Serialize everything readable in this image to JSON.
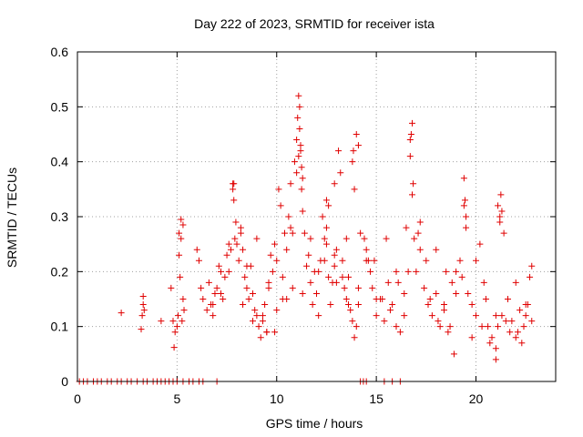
{
  "chart_data": {
    "type": "scatter",
    "title": "Day 222 of 2023, SRMTID for receiver ista",
    "xlabel": "GPS time / hours",
    "ylabel": "SRMTID / TECUs",
    "xlim": [
      0,
      24
    ],
    "ylim": [
      0,
      0.6
    ],
    "xticks": [
      0,
      5,
      10,
      15,
      20
    ],
    "xtick_labels": [
      "0",
      "5",
      "10",
      "15",
      "20"
    ],
    "yticks": [
      0,
      0.1,
      0.2,
      0.3,
      0.4,
      0.5,
      0.6
    ],
    "ytick_labels": [
      "0",
      "0.1",
      "0.2",
      "0.3",
      "0.4",
      "0.5",
      "0.6"
    ],
    "grid": true,
    "marker": "+",
    "series": [
      {
        "name": "SRMTID",
        "color": "#e00000",
        "x": [
          0.1,
          0.3,
          0.5,
          0.8,
          1.0,
          1.2,
          1.5,
          1.7,
          2.0,
          2.2,
          2.5,
          2.7,
          3.0,
          3.3,
          3.5,
          3.8,
          4.0,
          4.2,
          4.4,
          4.6,
          4.8,
          5.0,
          5.3,
          5.6,
          5.8,
          6.1,
          6.3,
          7.0,
          14.2,
          14.35,
          14.5,
          15.4,
          15.8,
          16.2,
          2.2,
          3.2,
          3.25,
          3.3,
          3.3,
          3.35,
          4.2,
          4.7,
          4.8,
          4.85,
          4.9,
          5.0,
          5.05,
          5.1,
          5.1,
          5.15,
          5.2,
          5.2,
          5.25,
          5.3,
          5.3,
          5.35,
          6.0,
          6.1,
          6.2,
          6.3,
          6.5,
          6.6,
          6.7,
          6.8,
          6.9,
          7.0,
          7.1,
          7.2,
          7.3,
          7.4,
          7.5,
          7.6,
          7.7,
          7.8,
          7.85,
          7.9,
          7.95,
          8.0,
          8.1,
          8.2,
          8.3,
          8.4,
          8.5,
          8.6,
          8.7,
          8.8,
          8.9,
          9.0,
          9.1,
          9.2,
          9.3,
          9.4,
          9.5,
          9.6,
          9.7,
          9.8,
          9.9,
          10.0,
          10.1,
          10.2,
          10.3,
          10.4,
          10.5,
          10.6,
          10.7,
          10.8,
          10.9,
          11.0,
          11.05,
          11.1,
          11.15,
          11.2,
          11.25,
          11.3,
          11.4,
          11.5,
          11.6,
          11.7,
          11.8,
          11.9,
          12.0,
          12.1,
          12.2,
          12.3,
          12.4,
          12.5,
          12.6,
          12.7,
          12.8,
          12.9,
          13.0,
          13.1,
          13.2,
          13.3,
          13.4,
          13.5,
          13.6,
          13.7,
          13.8,
          13.9,
          14.0,
          14.1,
          14.2,
          14.4,
          14.5,
          14.6,
          14.7,
          14.8,
          15.0,
          15.2,
          15.4,
          15.6,
          15.8,
          16.0,
          16.2,
          16.4,
          16.6,
          16.7,
          16.75,
          16.8,
          16.85,
          16.9,
          17.0,
          17.2,
          17.4,
          17.6,
          17.8,
          18.0,
          18.2,
          18.4,
          18.6,
          18.8,
          19.0,
          19.2,
          19.4,
          19.45,
          19.5,
          19.6,
          19.8,
          20.0,
          20.2,
          20.4,
          20.6,
          20.8,
          21.0,
          21.1,
          21.2,
          21.25,
          21.3,
          21.4,
          21.6,
          21.8,
          22.0,
          22.2,
          22.4,
          22.6,
          22.7,
          22.8,
          7.8,
          7.85,
          8.2,
          8.5,
          9.0,
          9.5,
          10.0,
          10.5,
          10.8,
          11.0,
          11.1,
          11.15,
          11.2,
          11.25,
          11.3,
          12.4,
          12.5,
          12.6,
          12.9,
          13.0,
          13.5,
          13.8,
          13.85,
          13.9,
          14.0,
          14.1,
          14.5,
          15.0,
          15.5,
          16.0,
          16.5,
          16.7,
          16.8,
          17.2,
          17.5,
          18.0,
          18.5,
          19.0,
          19.4,
          19.5,
          20.0,
          20.5,
          21.0,
          21.1,
          21.2,
          21.5,
          22.0,
          22.5,
          6.8,
          7.2,
          7.6,
          8.3,
          8.8,
          9.3,
          9.6,
          9.9,
          10.3,
          10.7,
          11.3,
          11.7,
          12.1,
          12.5,
          12.9,
          13.3,
          13.6,
          14.1,
          14.9,
          15.3,
          15.7,
          16.1,
          16.4,
          17.1,
          17.7,
          18.1,
          18.4,
          18.7,
          18.9,
          19.3,
          19.8,
          20.3,
          20.7,
          21.0,
          21.3,
          21.7,
          22.1,
          22.3,
          22.5,
          22.8
        ],
        "y": [
          0,
          0,
          0,
          0,
          0,
          0,
          0,
          0,
          0,
          0,
          0,
          0,
          0,
          0,
          0,
          0,
          0,
          0,
          0,
          0,
          0,
          0,
          0,
          0,
          0,
          0,
          0,
          0,
          0,
          0,
          0,
          0,
          0,
          0,
          0.125,
          0.095,
          0.12,
          0.14,
          0.155,
          0.13,
          0.11,
          0.17,
          0.11,
          0.062,
          0.09,
          0.1,
          0.12,
          0.23,
          0.27,
          0.19,
          0.26,
          0.295,
          0.11,
          0.15,
          0.285,
          0.13,
          0.24,
          0.22,
          0.17,
          0.15,
          0.13,
          0.18,
          0.14,
          0.12,
          0.16,
          0.17,
          0.21,
          0.16,
          0.15,
          0.19,
          0.23,
          0.2,
          0.24,
          0.36,
          0.33,
          0.26,
          0.29,
          0.25,
          0.22,
          0.27,
          0.24,
          0.19,
          0.17,
          0.15,
          0.21,
          0.16,
          0.13,
          0.12,
          0.1,
          0.08,
          0.11,
          0.14,
          0.09,
          0.17,
          0.23,
          0.2,
          0.25,
          0.22,
          0.35,
          0.32,
          0.19,
          0.27,
          0.24,
          0.3,
          0.36,
          0.27,
          0.4,
          0.44,
          0.48,
          0.52,
          0.5,
          0.42,
          0.35,
          0.31,
          0.27,
          0.21,
          0.23,
          0.18,
          0.14,
          0.2,
          0.16,
          0.12,
          0.22,
          0.3,
          0.26,
          0.33,
          0.19,
          0.14,
          0.18,
          0.21,
          0.24,
          0.42,
          0.38,
          0.22,
          0.17,
          0.15,
          0.19,
          0.13,
          0.11,
          0.08,
          0.1,
          0.14,
          0.27,
          0.26,
          0.24,
          0.22,
          0.2,
          0.17,
          0.12,
          0.15,
          0.11,
          0.18,
          0.14,
          0.1,
          0.09,
          0.16,
          0.2,
          0.41,
          0.45,
          0.47,
          0.36,
          0.26,
          0.2,
          0.24,
          0.17,
          0.14,
          0.12,
          0.16,
          0.1,
          0.13,
          0.09,
          0.18,
          0.2,
          0.22,
          0.37,
          0.33,
          0.3,
          0.16,
          0.14,
          0.12,
          0.25,
          0.18,
          0.1,
          0.08,
          0.06,
          0.1,
          0.3,
          0.34,
          0.31,
          0.27,
          0.15,
          0.11,
          0.08,
          0.13,
          0.1,
          0.14,
          0.19,
          0.21,
          0.35,
          0.36,
          0.28,
          0.21,
          0.26,
          0.09,
          0.13,
          0.15,
          0.17,
          0.38,
          0.41,
          0.46,
          0.43,
          0.39,
          0.37,
          0.22,
          0.28,
          0.32,
          0.36,
          0.18,
          0.26,
          0.4,
          0.42,
          0.35,
          0.45,
          0.43,
          0.22,
          0.15,
          0.26,
          0.2,
          0.28,
          0.44,
          0.34,
          0.29,
          0.22,
          0.24,
          0.2,
          0.16,
          0.32,
          0.28,
          0.22,
          0.15,
          0.12,
          0.32,
          0.29,
          0.11,
          0.18,
          0.14,
          0.14,
          0.2,
          0.25,
          0.14,
          0.11,
          0.12,
          0.18,
          0.09,
          0.15,
          0.28,
          0.16,
          0.26,
          0.2,
          0.25,
          0.23,
          0.19,
          0.14,
          0.17,
          0.22,
          0.15,
          0.13,
          0.18,
          0.12,
          0.27,
          0.15,
          0.11,
          0.14,
          0.1,
          0.05,
          0.19,
          0.08,
          0.1,
          0.07,
          0.04,
          0.12,
          0.09,
          0.09,
          0.07,
          0.12,
          0.11
        ]
      }
    ]
  }
}
